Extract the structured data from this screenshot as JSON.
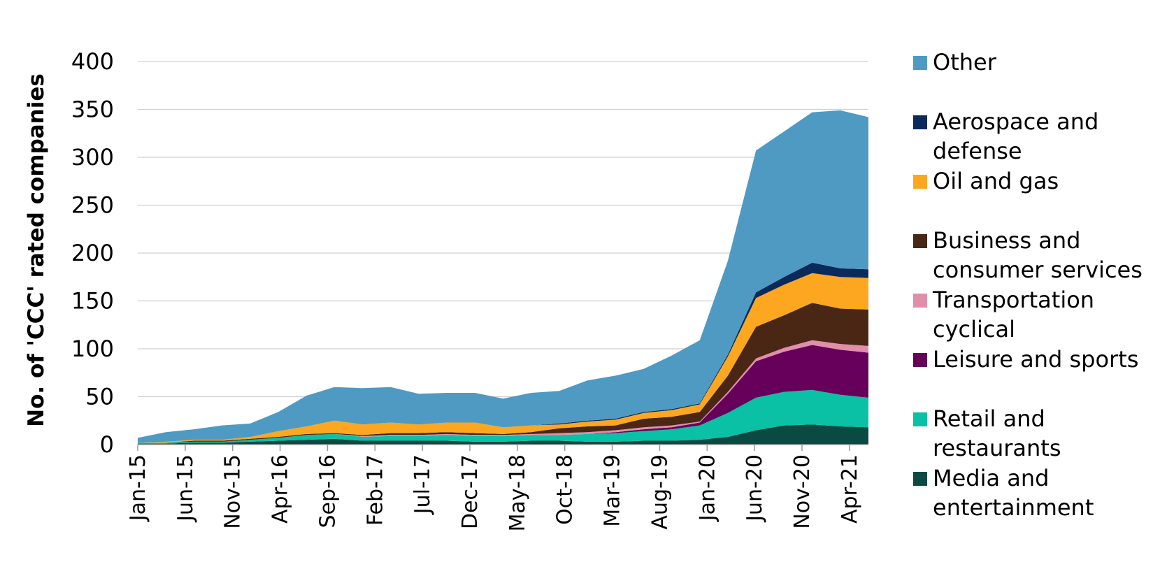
{
  "chart_data": {
    "type": "area",
    "stacked": true,
    "title": "",
    "ylabel": "No. of 'CCC' rated companies",
    "xlabel": "",
    "ylim": [
      0,
      400
    ],
    "yticks": [
      0,
      50,
      100,
      150,
      200,
      250,
      300,
      350,
      400
    ],
    "grid": "horizontal",
    "legend_position": "right",
    "x": [
      "Jan-15",
      "Apr-15",
      "Jul-15",
      "Oct-15",
      "Jan-16",
      "Apr-16",
      "Jul-16",
      "Oct-16",
      "Jan-17",
      "Apr-17",
      "Jul-17",
      "Oct-17",
      "Jan-18",
      "Apr-18",
      "Jul-18",
      "Oct-18",
      "Jan-19",
      "Apr-19",
      "Jul-19",
      "Oct-19",
      "Jan-20",
      "Apr-20",
      "Jul-20",
      "Oct-20",
      "Jan-21",
      "Apr-21",
      "Jun-21"
    ],
    "xtick_labels": [
      "Jan-15",
      "Jun-15",
      "Nov-15",
      "Apr-16",
      "Sep-16",
      "Feb-17",
      "Jul-17",
      "Dec-17",
      "May-18",
      "Oct-18",
      "Mar-19",
      "Aug-19",
      "Jan-20",
      "Jun-20",
      "Nov-20",
      "Apr-21"
    ],
    "series": [
      {
        "name": "Media and entertainment",
        "color": "#0a4a42",
        "values": [
          1,
          1,
          2,
          2,
          3,
          4,
          5,
          6,
          4,
          4,
          4,
          4,
          3,
          3,
          4,
          4,
          3,
          3,
          4,
          4,
          5,
          8,
          15,
          20,
          21,
          19,
          18
        ]
      },
      {
        "name": "Retail and restaurants",
        "color": "#0ac0a5",
        "values": [
          1,
          1,
          1,
          1,
          2,
          3,
          5,
          5,
          4,
          5,
          5,
          6,
          6,
          6,
          6,
          6,
          8,
          9,
          10,
          12,
          15,
          25,
          34,
          35,
          36,
          33,
          31
        ]
      },
      {
        "name": "Leisure and sports",
        "color": "#66005a",
        "values": [
          0,
          0,
          0,
          0,
          0,
          0,
          0,
          0,
          0,
          0,
          0,
          0,
          0,
          0,
          0,
          0,
          0,
          1,
          2,
          2,
          3,
          20,
          38,
          42,
          47,
          47,
          47
        ]
      },
      {
        "name": "Transportation cyclical",
        "color": "#e08eaa",
        "values": [
          0,
          0,
          0,
          0,
          0,
          0,
          0,
          0,
          1,
          1,
          1,
          1,
          1,
          1,
          1,
          2,
          2,
          2,
          2,
          2,
          1,
          2,
          3,
          4,
          5,
          6,
          7
        ]
      },
      {
        "name": "Business and consumer services",
        "color": "#4a2614",
        "values": [
          0,
          0,
          1,
          1,
          1,
          1,
          1,
          1,
          1,
          2,
          2,
          2,
          2,
          1,
          2,
          5,
          6,
          5,
          9,
          9,
          10,
          17,
          33,
          34,
          39,
          37,
          38
        ]
      },
      {
        "name": "Oil and gas",
        "color": "#fca71f",
        "values": [
          0,
          1,
          1,
          1,
          2,
          6,
          8,
          13,
          11,
          11,
          9,
          10,
          11,
          7,
          7,
          4,
          5,
          6,
          6,
          7,
          8,
          20,
          30,
          32,
          31,
          33,
          33
        ]
      },
      {
        "name": "Aerospace and defense",
        "color": "#0a2a5c",
        "values": [
          0,
          0,
          0,
          0,
          0,
          0,
          0,
          0,
          0,
          0,
          0,
          0,
          0,
          0,
          0,
          1,
          1,
          1,
          1,
          1,
          1,
          2,
          6,
          8,
          11,
          9,
          9
        ]
      },
      {
        "name": "Other",
        "color": "#4e9ac3",
        "values": [
          5,
          10,
          11,
          15,
          14,
          20,
          32,
          35,
          38,
          37,
          32,
          31,
          31,
          30,
          34,
          34,
          42,
          45,
          45,
          56,
          66,
          98,
          148,
          152,
          157,
          165,
          159
        ]
      }
    ]
  }
}
